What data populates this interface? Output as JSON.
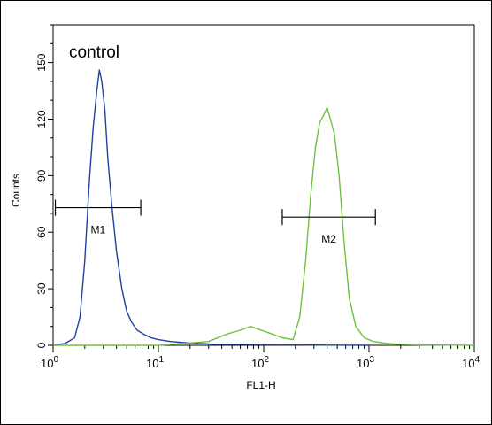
{
  "chart_data": {
    "type": "line",
    "annotation": "control",
    "xlabel": "FL1-H",
    "ylabel": "Counts",
    "x_scale": "log",
    "xlim": [
      1,
      10000
    ],
    "ylim": [
      0,
      170
    ],
    "x_ticks": [
      {
        "value": 1,
        "base": "10",
        "exp": "0"
      },
      {
        "value": 10,
        "base": "10",
        "exp": "1"
      },
      {
        "value": 100,
        "base": "10",
        "exp": "2"
      },
      {
        "value": 1000,
        "base": "10",
        "exp": "3"
      },
      {
        "value": 10000,
        "base": "10",
        "exp": "4"
      }
    ],
    "y_ticks": [
      0,
      30,
      60,
      90,
      120,
      150
    ],
    "series": [
      {
        "color": "#1f3fa6",
        "x": [
          1.0,
          1.3,
          1.6,
          1.8,
          2.0,
          2.2,
          2.4,
          2.6,
          2.75,
          2.9,
          3.1,
          3.3,
          3.6,
          4.0,
          4.5,
          5.0,
          5.6,
          6.3,
          7.2,
          8.5,
          10,
          13,
          17,
          25,
          35,
          60,
          100,
          200,
          400,
          1000
        ],
        "y": [
          0,
          1,
          4,
          15,
          45,
          85,
          115,
          135,
          146,
          140,
          125,
          100,
          75,
          50,
          30,
          18,
          12,
          8,
          6,
          4,
          3,
          2,
          1.5,
          1,
          0.5,
          0.5,
          0.3,
          0.2,
          0.1,
          0
        ]
      },
      {
        "color": "#6cc23a",
        "x": [
          1.0,
          10,
          30,
          45,
          60,
          75,
          95,
          120,
          150,
          190,
          220,
          250,
          280,
          310,
          340,
          370,
          400,
          430,
          470,
          520,
          580,
          650,
          750,
          900,
          1100,
          1500,
          2000,
          3000,
          10000
        ],
        "y": [
          0,
          0,
          2,
          6,
          8,
          10,
          8,
          6,
          4,
          3,
          15,
          45,
          80,
          105,
          118,
          122,
          126,
          120,
          112,
          90,
          55,
          25,
          10,
          4,
          2,
          1,
          0.5,
          0.2,
          0
        ]
      }
    ],
    "markers": [
      {
        "label": "M1",
        "x_start": 1.05,
        "x_end": 6.8,
        "y": 73
      },
      {
        "label": "M2",
        "x_start": 150,
        "x_end": 1150,
        "y": 68
      }
    ],
    "grid": false,
    "legend": "none"
  }
}
